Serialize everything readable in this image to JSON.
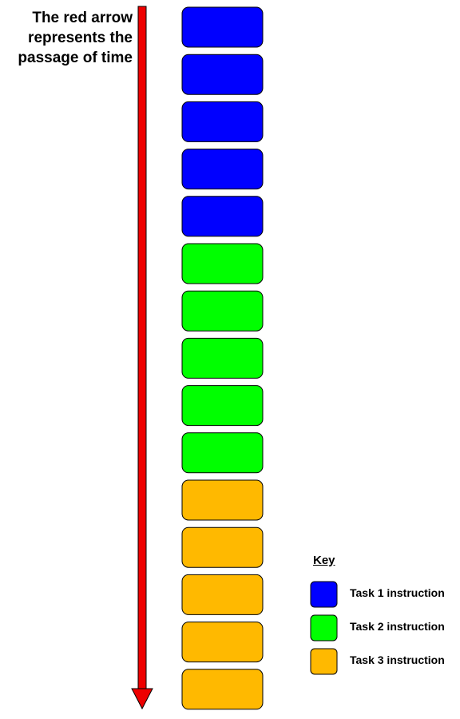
{
  "caption": "The red arrow\nrepresents the\npassage of time",
  "arrow_color": "#ee0000",
  "tasks": {
    "task1": {
      "color": "#0000ff"
    },
    "task2": {
      "color": "#00ff00"
    },
    "task3": {
      "color": "#ffb900"
    }
  },
  "sequence": [
    "task1",
    "task1",
    "task1",
    "task1",
    "task1",
    "task2",
    "task2",
    "task2",
    "task2",
    "task2",
    "task3",
    "task3",
    "task3",
    "task3",
    "task3"
  ],
  "key": {
    "title": "Key",
    "items": [
      {
        "task": "task1",
        "label": "Task 1 instruction"
      },
      {
        "task": "task2",
        "label": "Task 2 instruction"
      },
      {
        "task": "task3",
        "label": "Task 3 instruction"
      }
    ]
  }
}
